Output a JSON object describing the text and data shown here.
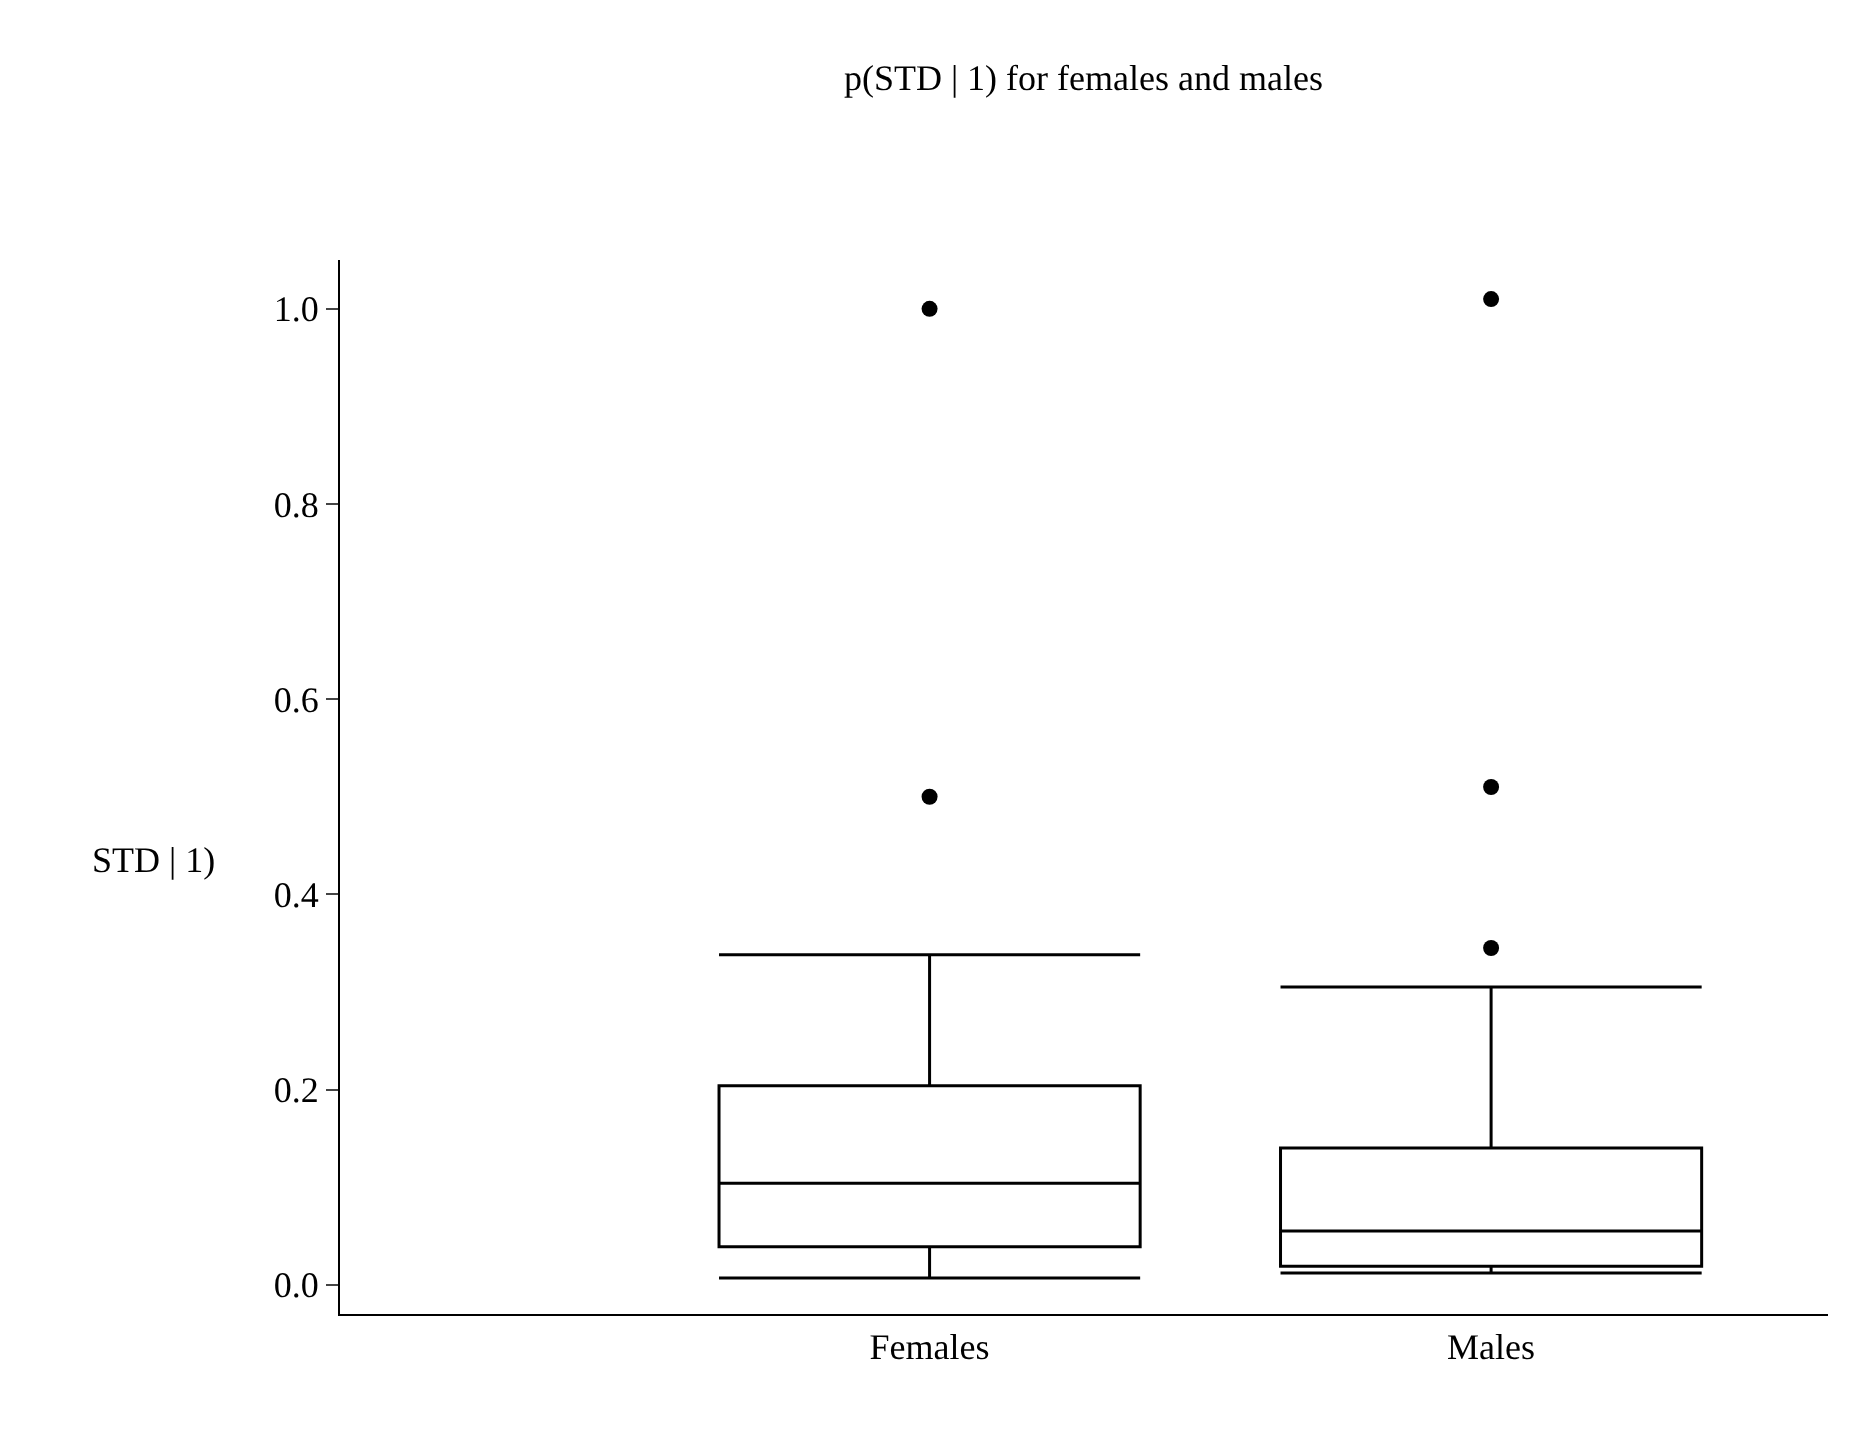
{
  "chart_data": {
    "type": "box",
    "title": "p(STD | 1) for females and males",
    "ylabel": "STD | 1)",
    "categories": [
      "Females",
      "Males"
    ],
    "boxes": [
      {
        "low": 0.007,
        "q1": 0.039,
        "median": 0.104,
        "q3": 0.204,
        "high": 0.338,
        "outliers": [
          0.5,
          1.0
        ]
      },
      {
        "low": 0.012,
        "q1": 0.019,
        "median": 0.055,
        "q3": 0.14,
        "high": 0.305,
        "outliers": [
          0.345,
          0.51,
          1.01
        ]
      }
    ],
    "color": "#000000",
    "ylim": [
      -0.03,
      1.05
    ],
    "yticks": [
      {
        "value": 0,
        "label": "0.0"
      },
      {
        "value": 0.2,
        "label": "0.2"
      },
      {
        "value": 0.4,
        "label": "0.4"
      },
      {
        "value": 0.6,
        "label": "0.6"
      },
      {
        "value": 0.8,
        "label": "0.8"
      },
      {
        "value": 1,
        "label": "1.0"
      }
    ],
    "grid": false
  }
}
